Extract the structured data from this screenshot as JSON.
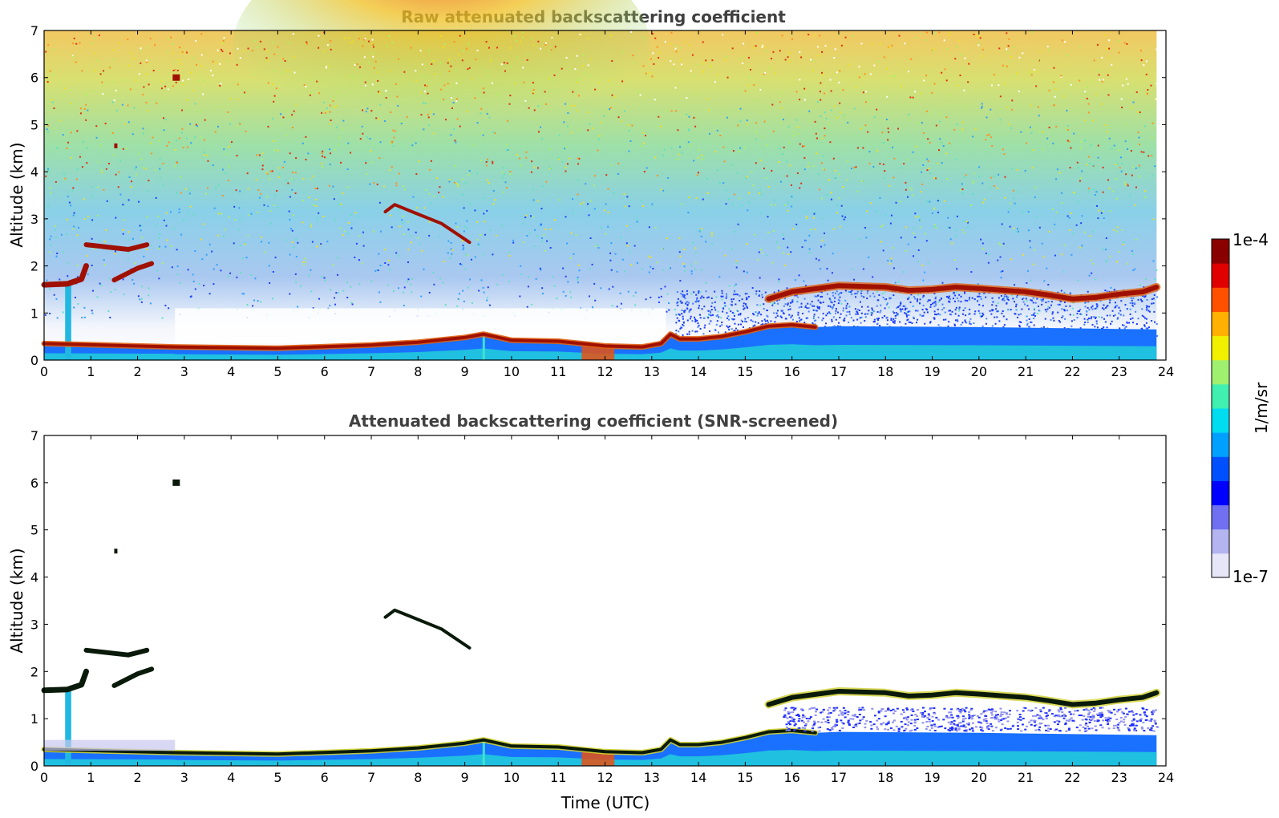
{
  "chart_data": [
    {
      "type": "heatmap",
      "title": "Raw attenuated backscattering coefficient",
      "ylabel": "Altitude (km)",
      "xlabel": "",
      "xlim": [
        0,
        24
      ],
      "ylim": [
        0,
        7
      ],
      "xticks": [
        "0",
        "1",
        "2",
        "3",
        "4",
        "5",
        "6",
        "7",
        "8",
        "9",
        "10",
        "11",
        "12",
        "13",
        "14",
        "15",
        "16",
        "17",
        "18",
        "19",
        "20",
        "21",
        "22",
        "23",
        "24"
      ],
      "yticks": [
        "0",
        "1",
        "2",
        "3",
        "4",
        "5",
        "6",
        "7"
      ],
      "data_extent_hours": [
        0,
        23.8
      ],
      "features": {
        "boundary_layer_top_km": [
          [
            0,
            0.35
          ],
          [
            2.8,
            0.28
          ],
          [
            5,
            0.25
          ],
          [
            7,
            0.32
          ],
          [
            8,
            0.38
          ],
          [
            9,
            0.48
          ],
          [
            9.4,
            0.55
          ],
          [
            10,
            0.42
          ],
          [
            11,
            0.4
          ],
          [
            12,
            0.3
          ],
          [
            12.8,
            0.28
          ],
          [
            13.2,
            0.35
          ],
          [
            13.4,
            0.55
          ],
          [
            13.6,
            0.45
          ],
          [
            14,
            0.45
          ],
          [
            14.5,
            0.5
          ],
          [
            15,
            0.6
          ],
          [
            15.5,
            0.72
          ],
          [
            16,
            0.75
          ],
          [
            16.5,
            0.7
          ]
        ],
        "elevated_layer_km": [
          [
            15.5,
            1.3
          ],
          [
            16,
            1.45
          ],
          [
            17,
            1.58
          ],
          [
            18,
            1.55
          ],
          [
            18.5,
            1.48
          ],
          [
            19,
            1.5
          ],
          [
            19.5,
            1.55
          ],
          [
            20,
            1.52
          ],
          [
            21,
            1.45
          ],
          [
            21.5,
            1.38
          ],
          [
            22,
            1.3
          ],
          [
            22.5,
            1.33
          ],
          [
            23,
            1.4
          ],
          [
            23.5,
            1.45
          ],
          [
            23.8,
            1.55
          ]
        ],
        "early_cloud_km": [
          [
            0,
            1.6
          ],
          [
            0.5,
            1.62
          ],
          [
            0.8,
            1.72
          ],
          [
            0.9,
            2.0
          ]
        ],
        "cloud_patch_2_4km": [
          [
            0.9,
            2.45
          ],
          [
            1.8,
            2.35
          ],
          [
            2.2,
            2.45
          ]
        ],
        "cloud_patch_2km": [
          [
            1.5,
            1.7
          ],
          [
            2.0,
            1.95
          ],
          [
            2.3,
            2.05
          ]
        ],
        "descending_layer_km": [
          [
            7.3,
            3.15
          ],
          [
            7.5,
            3.3
          ],
          [
            8.0,
            3.1
          ],
          [
            8.5,
            2.9
          ],
          [
            9.1,
            2.5
          ]
        ],
        "isolated_cloud_6km": [
          [
            2.75,
            6.0
          ]
        ],
        "isolated_cloud_4_5km": [
          [
            1.5,
            4.55
          ]
        ]
      }
    },
    {
      "type": "heatmap",
      "title": "Attenuated backscattering coefficient (SNR-screened)",
      "ylabel": "Altitude (km)",
      "xlabel": "Time (UTC)",
      "xlim": [
        0,
        24
      ],
      "ylim": [
        0,
        7
      ],
      "xticks": [
        "0",
        "1",
        "2",
        "3",
        "4",
        "5",
        "6",
        "7",
        "8",
        "9",
        "10",
        "11",
        "12",
        "13",
        "14",
        "15",
        "16",
        "17",
        "18",
        "19",
        "20",
        "21",
        "22",
        "23",
        "24"
      ],
      "yticks": [
        "0",
        "1",
        "2",
        "3",
        "4",
        "5",
        "6",
        "7"
      ]
    }
  ],
  "colorbar": {
    "label": "1/m/sr",
    "max_label": "1e-4",
    "min_label": "1e-7",
    "scale": "log",
    "colors": [
      "#e6e6f8",
      "#b4b4f0",
      "#7070f0",
      "#0000ff",
      "#0050ff",
      "#00a0ff",
      "#00dcf0",
      "#40f0b0",
      "#a0f070",
      "#f0f000",
      "#ffb000",
      "#ff5000",
      "#e00000",
      "#8a0000"
    ]
  }
}
